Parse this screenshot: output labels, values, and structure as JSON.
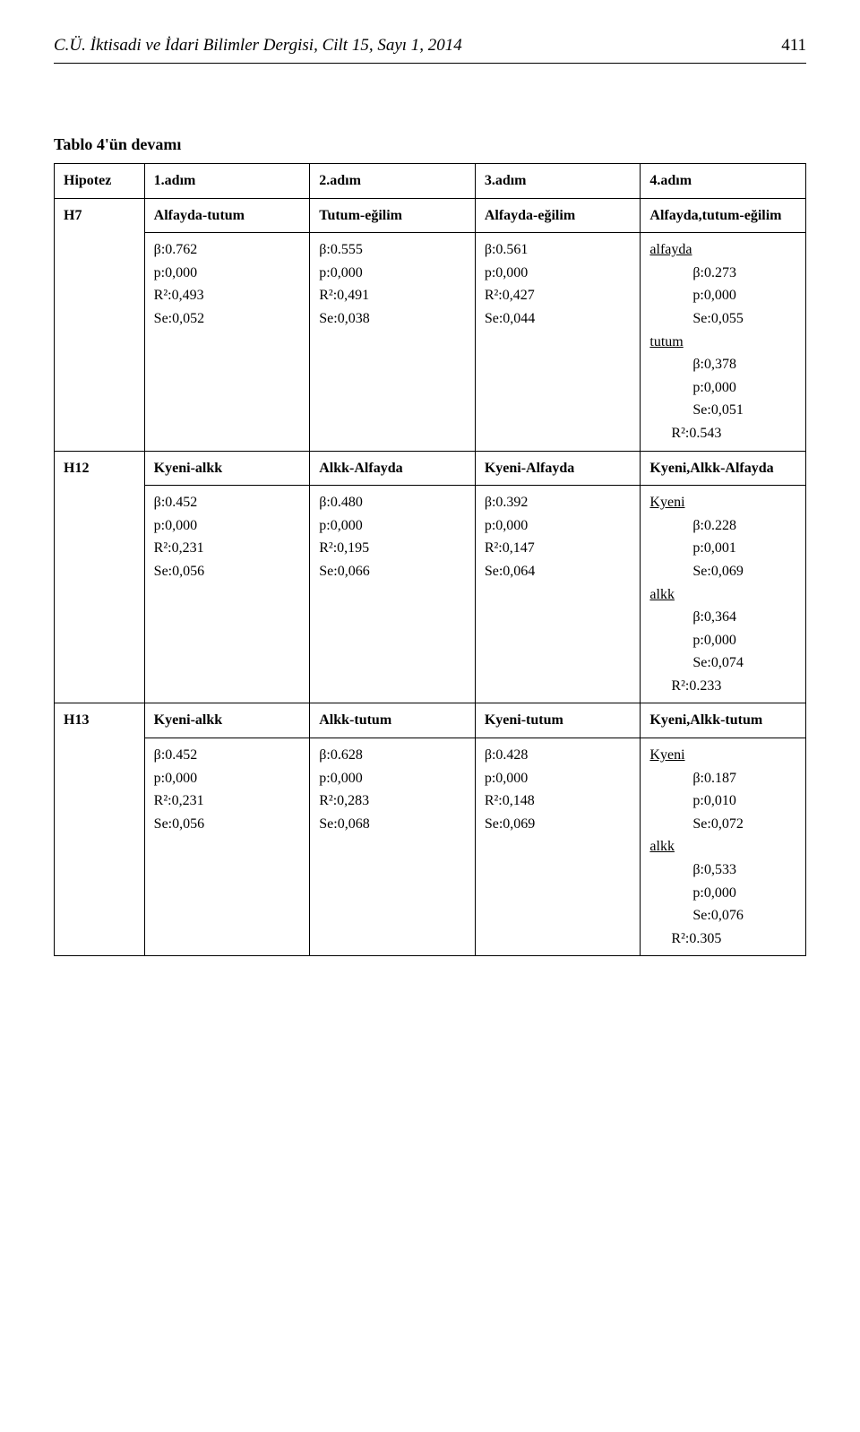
{
  "header": {
    "journal": "C.Ü. İktisadi ve İdari Bilimler Dergisi, Cilt 15, Sayı 1, 2014",
    "page": "411"
  },
  "table_title": "Tablo 4'ün devamı",
  "columns": {
    "c0": "Hipotez",
    "c1": "1.adım",
    "c2": "2.adım",
    "c3": "3.adım",
    "c4": "4.adım"
  },
  "h7": {
    "id": "H7",
    "labels": {
      "c1": "Alfayda-tutum",
      "c2": "Tutum-eğilim",
      "c3": "Alfayda-eğilim",
      "c4": "Alfayda,tutum-eğilim"
    },
    "c1": {
      "beta": "β:0.762",
      "p": "p:0,000",
      "r2": "R²:0,493",
      "se": "Se:0,052"
    },
    "c2": {
      "beta": "β:0.555",
      "p": "p:0,000",
      "r2": "R²:0,491",
      "se": "Se:0,038"
    },
    "c3": {
      "beta": "β:0.561",
      "p": "p:0,000",
      "r2": "R²:0,427",
      "se": "Se:0,044"
    },
    "c4": {
      "group1_name": "alfayda",
      "g1_beta": "β:0.273",
      "g1_p": "p:0,000",
      "g1_se": "Se:0,055",
      "group2_name": "tutum",
      "g2_beta": "β:0,378",
      "g2_p": "p:0,000",
      "g2_se": "Se:0,051",
      "r2": "R²:0.543"
    }
  },
  "h12": {
    "id": "H12",
    "labels": {
      "c1": "Kyeni-alkk",
      "c2": "Alkk-Alfayda",
      "c3": "Kyeni-Alfayda",
      "c4": "Kyeni,Alkk-Alfayda"
    },
    "c1": {
      "beta": "β:0.452",
      "p": "p:0,000",
      "r2": "R²:0,231",
      "se": "Se:0,056"
    },
    "c2": {
      "beta": "β:0.480",
      "p": "p:0,000",
      "r2": "R²:0,195",
      "se": "Se:0,066"
    },
    "c3": {
      "beta": "β:0.392",
      "p": "p:0,000",
      "r2": "R²:0,147",
      "se": "Se:0,064"
    },
    "c4": {
      "group1_name": "Kyeni",
      "g1_beta": "β:0.228",
      "g1_p": "p:0,001",
      "g1_se": "Se:0,069",
      "group2_name": "alkk",
      "g2_beta": "β:0,364",
      "g2_p": "p:0,000",
      "g2_se": "Se:0,074",
      "r2": "R²:0.233"
    }
  },
  "h13": {
    "id": "H13",
    "labels": {
      "c1": "Kyeni-alkk",
      "c2": "Alkk-tutum",
      "c3": "Kyeni-tutum",
      "c4": "Kyeni,Alkk-tutum"
    },
    "c1": {
      "beta": "β:0.452",
      "p": "p:0,000",
      "r2": "R²:0,231",
      "se": "Se:0,056"
    },
    "c2": {
      "beta": "β:0.628",
      "p": "p:0,000",
      "r2": "R²:0,283",
      "se": "Se:0,068"
    },
    "c3": {
      "beta": "β:0.428",
      "p": "p:0,000",
      "r2": "R²:0,148",
      "se": "Se:0,069"
    },
    "c4": {
      "group1_name": "Kyeni",
      "g1_beta": "β:0.187",
      "g1_p": "p:0,010",
      "g1_se": "Se:0,072",
      "group2_name": "alkk",
      "g2_beta": "β:0,533",
      "g2_p": "p:0,000",
      "g2_se": "Se:0,076",
      "r2": "R²:0.305"
    }
  }
}
